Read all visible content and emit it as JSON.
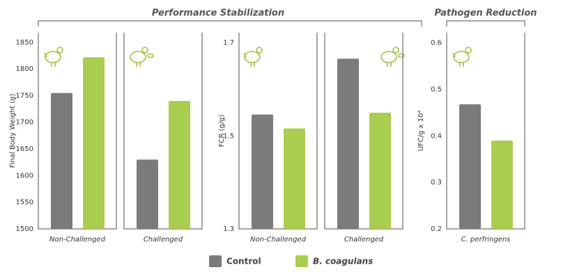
{
  "headers": [
    "Performance Stabilization",
    "Pathogen Reduction"
  ],
  "chart_data": [
    {
      "type": "bar",
      "y_label": "Final Body Weight (g)",
      "categories": [
        "Non-Challenged",
        "Challenged"
      ],
      "series": [
        {
          "name": "Control",
          "color": "#7b7b7b",
          "values": [
            1755,
            1630
          ]
        },
        {
          "name": "B. coagulans",
          "color": "#a9cd4f",
          "values": [
            1822,
            1740
          ]
        }
      ],
      "ylim": [
        1500,
        1868
      ],
      "yticks": [
        1500,
        1550,
        1600,
        1650,
        1700,
        1750,
        1800,
        1850
      ]
    },
    {
      "type": "bar",
      "y_label": "FCR (g/g)",
      "categories": [
        "Non-Challenged",
        "Challenged"
      ],
      "series": [
        {
          "name": "Control",
          "color": "#7b7b7b",
          "values": [
            1.546,
            1.666
          ]
        },
        {
          "name": "B. coagulans",
          "color": "#a9cd4f",
          "values": [
            1.516,
            1.55
          ]
        }
      ],
      "ylim": [
        1.3,
        1.722
      ],
      "yticks": [
        1.3,
        1.5,
        1.7
      ]
    },
    {
      "type": "bar",
      "y_label": "UFC/g x 10⁴",
      "categories": [
        "C. perfringens"
      ],
      "series": [
        {
          "name": "Control",
          "color": "#7b7b7b",
          "values": [
            0.468
          ]
        },
        {
          "name": "B. coagulans",
          "color": "#a9cd4f",
          "values": [
            0.39
          ]
        }
      ],
      "ylim": [
        0.2,
        0.622
      ],
      "yticks": [
        0.2,
        0.3,
        0.4,
        0.5,
        0.6
      ]
    }
  ]
}
